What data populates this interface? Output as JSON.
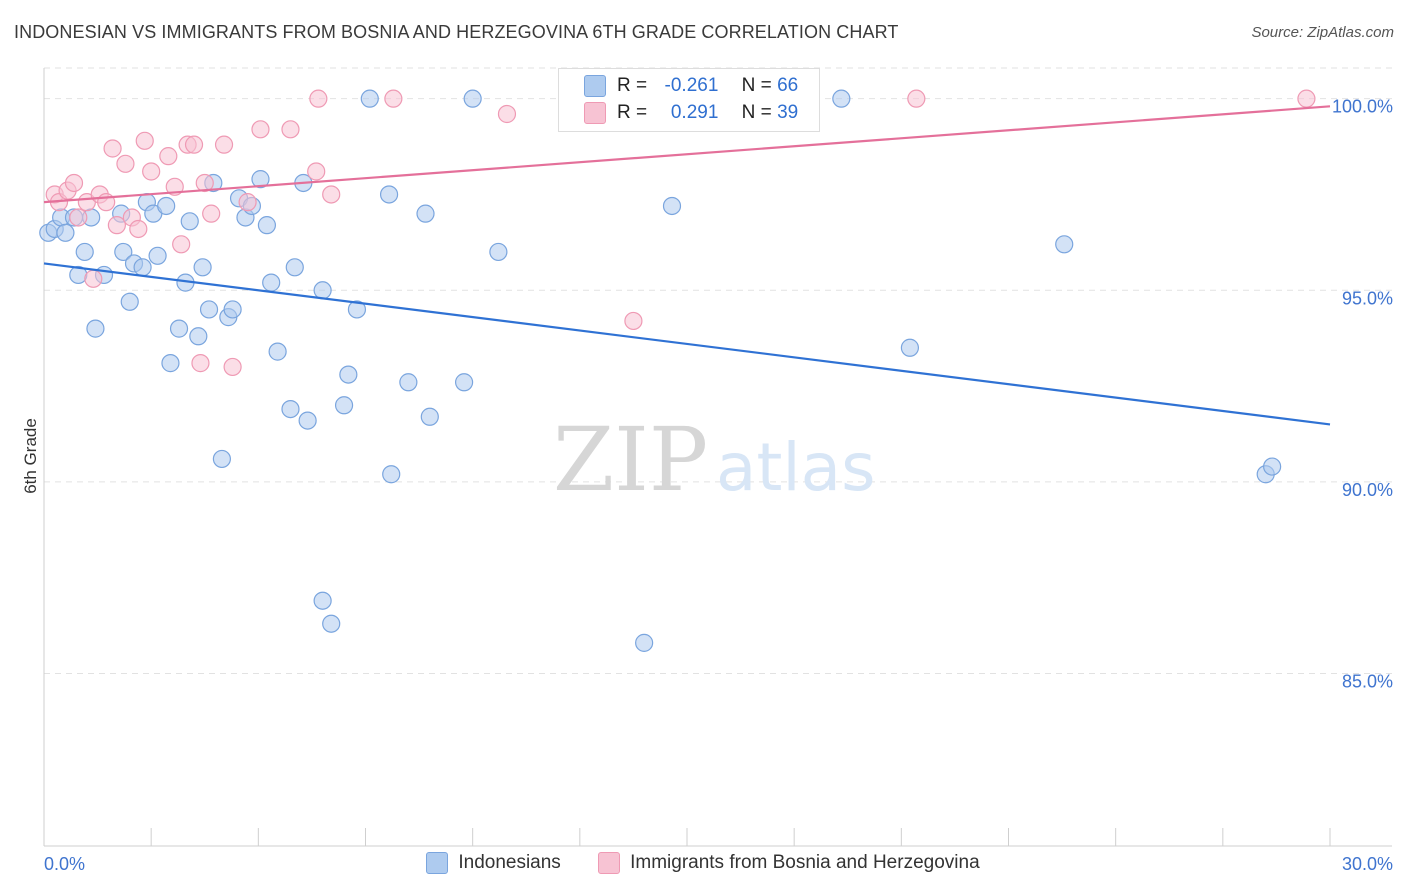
{
  "header": {
    "title": "INDONESIAN VS IMMIGRANTS FROM BOSNIA AND HERZEGOVINA 6TH GRADE CORRELATION CHART",
    "source": "Source: ZipAtlas.com"
  },
  "watermark": {
    "zip": "ZIP",
    "atlas": "atlas"
  },
  "stats": {
    "r_label": "R =",
    "n_label": "N =",
    "series1": {
      "r": "-0.261",
      "n": "66"
    },
    "series2": {
      "r": "0.291",
      "n": "39"
    }
  },
  "colors": {
    "blue_fill": "#aecbef",
    "blue_stroke": "#7aa5de",
    "blue_line": "#2f72d4",
    "pink_fill": "#f7c3d3",
    "pink_stroke": "#ef9ab4",
    "pink_line": "#e4709a",
    "axis_label": "#3f74cf",
    "grid": "#e2e2e2"
  },
  "chart_data": {
    "type": "scatter",
    "title": "INDONESIAN VS IMMIGRANTS FROM BOSNIA AND HERZEGOVINA 6TH GRADE CORRELATION CHART",
    "xlabel": "",
    "ylabel": "6th Grade",
    "xlim": [
      0,
      30
    ],
    "ylim": [
      80.5,
      100.8
    ],
    "x_tick_labels": [
      "0.0%",
      "30.0%"
    ],
    "y_ticks": [
      85,
      90,
      95,
      100
    ],
    "y_tick_labels": [
      "85.0%",
      "90.0%",
      "95.0%",
      "100.0%"
    ],
    "legend": [
      "Indonesians",
      "Immigrants from Bosnia and Herzegovina"
    ],
    "series": [
      {
        "name": "Indonesians",
        "r": -0.261,
        "n": 66,
        "trend": {
          "x": [
            0,
            30
          ],
          "y": [
            95.7,
            91.5
          ]
        },
        "points": [
          [
            0.1,
            96.5
          ],
          [
            0.25,
            96.6
          ],
          [
            0.4,
            96.9
          ],
          [
            0.5,
            96.5
          ],
          [
            0.7,
            96.9
          ],
          [
            0.8,
            95.4
          ],
          [
            0.95,
            96.0
          ],
          [
            1.1,
            96.9
          ],
          [
            1.2,
            94.0
          ],
          [
            1.4,
            95.4
          ],
          [
            1.8,
            97.0
          ],
          [
            1.85,
            96.0
          ],
          [
            2.0,
            94.7
          ],
          [
            2.1,
            95.7
          ],
          [
            2.3,
            95.6
          ],
          [
            2.4,
            97.3
          ],
          [
            2.55,
            97.0
          ],
          [
            2.65,
            95.9
          ],
          [
            2.85,
            97.2
          ],
          [
            2.95,
            93.1
          ],
          [
            3.15,
            94.0
          ],
          [
            3.3,
            95.2
          ],
          [
            3.4,
            96.8
          ],
          [
            3.6,
            93.8
          ],
          [
            3.7,
            95.6
          ],
          [
            3.85,
            94.5
          ],
          [
            3.95,
            97.8
          ],
          [
            4.15,
            90.6
          ],
          [
            4.3,
            94.3
          ],
          [
            4.4,
            94.5
          ],
          [
            4.55,
            97.4
          ],
          [
            4.7,
            96.9
          ],
          [
            4.85,
            97.2
          ],
          [
            5.05,
            97.9
          ],
          [
            5.2,
            96.7
          ],
          [
            5.3,
            95.2
          ],
          [
            5.45,
            93.4
          ],
          [
            5.75,
            91.9
          ],
          [
            5.85,
            95.6
          ],
          [
            6.05,
            97.8
          ],
          [
            6.15,
            91.6
          ],
          [
            6.5,
            86.9
          ],
          [
            6.5,
            95.0
          ],
          [
            6.7,
            86.3
          ],
          [
            7.0,
            92.0
          ],
          [
            7.1,
            92.8
          ],
          [
            7.3,
            94.5
          ],
          [
            7.6,
            100.0
          ],
          [
            8.05,
            97.5
          ],
          [
            8.1,
            90.2
          ],
          [
            8.5,
            92.6
          ],
          [
            8.9,
            97.0
          ],
          [
            9.0,
            91.7
          ],
          [
            9.8,
            92.6
          ],
          [
            10.0,
            100.0
          ],
          [
            10.6,
            96.0
          ],
          [
            14.0,
            85.8
          ],
          [
            14.65,
            97.2
          ],
          [
            18.6,
            100.0
          ],
          [
            20.2,
            93.5
          ],
          [
            23.8,
            96.2
          ],
          [
            28.5,
            90.2
          ],
          [
            28.65,
            90.4
          ]
        ]
      },
      {
        "name": "Immigrants from Bosnia and Herzegovina",
        "r": 0.291,
        "n": 39,
        "trend": {
          "x": [
            0,
            30
          ],
          "y": [
            97.3,
            99.8
          ]
        },
        "points": [
          [
            0.25,
            97.5
          ],
          [
            0.35,
            97.3
          ],
          [
            0.55,
            97.6
          ],
          [
            0.7,
            97.8
          ],
          [
            0.8,
            96.9
          ],
          [
            1.0,
            97.3
          ],
          [
            1.15,
            95.3
          ],
          [
            1.3,
            97.5
          ],
          [
            1.45,
            97.3
          ],
          [
            1.6,
            98.7
          ],
          [
            1.7,
            96.7
          ],
          [
            1.9,
            98.3
          ],
          [
            2.05,
            96.9
          ],
          [
            2.2,
            96.6
          ],
          [
            2.35,
            98.9
          ],
          [
            2.5,
            98.1
          ],
          [
            2.9,
            98.5
          ],
          [
            3.05,
            97.7
          ],
          [
            3.2,
            96.2
          ],
          [
            3.35,
            98.8
          ],
          [
            3.5,
            98.8
          ],
          [
            3.65,
            93.1
          ],
          [
            3.75,
            97.8
          ],
          [
            3.9,
            97.0
          ],
          [
            4.2,
            98.8
          ],
          [
            4.4,
            93.0
          ],
          [
            4.75,
            97.3
          ],
          [
            5.05,
            99.2
          ],
          [
            5.75,
            99.2
          ],
          [
            6.35,
            98.1
          ],
          [
            6.4,
            100.0
          ],
          [
            6.7,
            97.5
          ],
          [
            8.15,
            100.0
          ],
          [
            10.8,
            99.6
          ],
          [
            13.75,
            94.2
          ],
          [
            20.35,
            100.0
          ],
          [
            29.45,
            100.0
          ]
        ]
      }
    ]
  }
}
